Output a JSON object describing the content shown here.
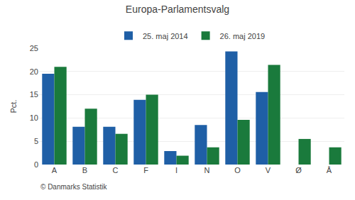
{
  "chart_data": {
    "type": "bar",
    "title": "Europa-Parlamentsvalg",
    "categories": [
      "A",
      "B",
      "C",
      "F",
      "I",
      "N",
      "O",
      "V",
      "Ø",
      "Å"
    ],
    "series": [
      {
        "name": "25. maj 2014",
        "color": "#1f5fa6",
        "values": [
          19.5,
          8.1,
          8.1,
          13.9,
          2.9,
          8.5,
          24.3,
          15.6,
          0.0,
          0.0
        ]
      },
      {
        "name": "26. maj 2019",
        "color": "#1a7a3c",
        "values": [
          21.0,
          12.0,
          6.6,
          15.0,
          1.9,
          3.7,
          9.6,
          21.4,
          5.5,
          3.7
        ]
      }
    ],
    "ylabel": "Pct.",
    "ylim": [
      0,
      25
    ],
    "yticks": [
      0,
      5,
      10,
      15,
      20,
      25
    ],
    "grid": true,
    "legend": "top",
    "annotations": [
      "© Danmarks Statistik"
    ]
  }
}
